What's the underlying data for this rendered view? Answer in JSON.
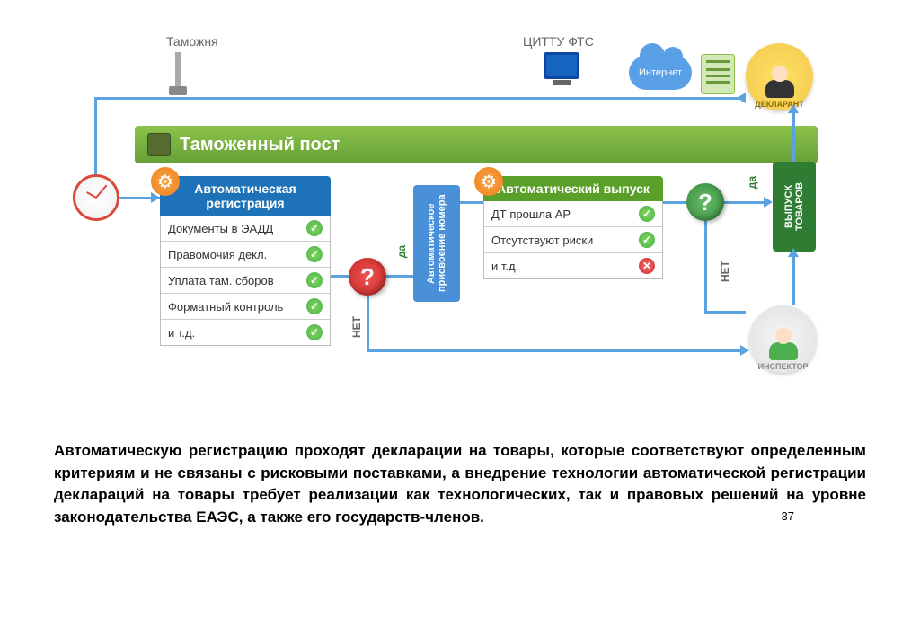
{
  "topLabels": {
    "customs": "Таможня",
    "cittu": "ЦИТТУ ФТС",
    "internet": "Интернет",
    "declarant": "ДЕКЛАРАНТ",
    "inspector": "ИНСПЕКТОР"
  },
  "headerTitle": "Таможенный пост",
  "autoReg": {
    "title": "Автоматическая регистрация",
    "rows": [
      {
        "label": "Документы в ЭАДД",
        "status": "ok"
      },
      {
        "label": "Правомочия декл.",
        "status": "ok"
      },
      {
        "label": "Уплата там. сборов",
        "status": "ok"
      },
      {
        "label": "Форматный контроль",
        "status": "ok"
      },
      {
        "label": "и т.д.",
        "status": "ok"
      }
    ],
    "headColor": "#1e73b8",
    "gearColor": "#ef7f1a"
  },
  "numAssign": {
    "title": "Автоматическое присвоение номера",
    "bg": "#4a90d9"
  },
  "autoRelease": {
    "title": "Автоматический выпуск",
    "rows": [
      {
        "label": "ДТ прошла АР",
        "status": "ok"
      },
      {
        "label": "Отсутствуют риски",
        "status": "ok"
      },
      {
        "label": "и т.д.",
        "status": "no"
      }
    ],
    "headColor": "#5aa028",
    "gearColor": "#ef7f1a"
  },
  "goodsRelease": {
    "title": "ВЫПУСК ТОВАРОВ",
    "bg": "#2e7d32"
  },
  "labels": {
    "yes": "да",
    "no": "НЕТ"
  },
  "questionColors": {
    "red": "#d32f2f",
    "green": "#4caf50"
  },
  "colors": {
    "flowLine": "#5ba3e0",
    "declarantBg": "#f2c94c",
    "inspectorBg": "#e8e8e8",
    "monitorBg": "#1565c0"
  },
  "paragraph": "Автоматическую регистрацию проходят декларации на товары, которые соответствуют определенным критериям и не связаны с рисковыми поставками, а внедрение технологии автоматической регистрации деклараций на товары требует реализации как технологических, так и правовых решений на уровне законодательства ЕАЭС, а также его государств-членов.",
  "pageNumber": "37"
}
